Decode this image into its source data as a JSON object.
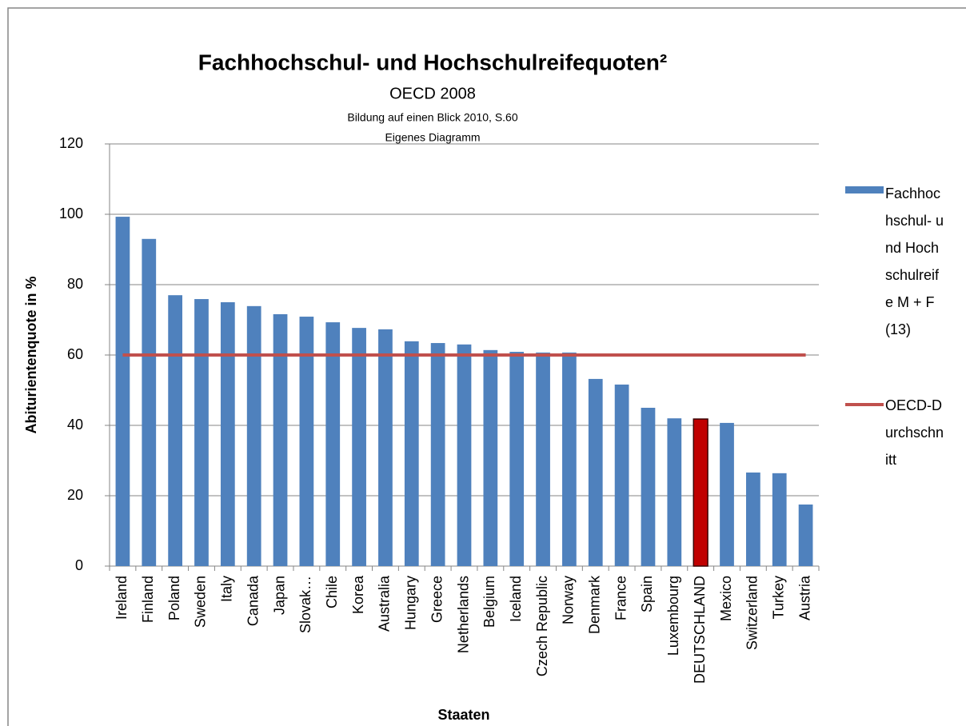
{
  "chart_data": {
    "type": "bar",
    "title": "Fachhochschul- und Hochschulreifequoten²",
    "subtitle": "OECD 2008",
    "annotations": [
      "Bildung auf einen Blick 2010, S.60",
      "Eigenes Diagramm"
    ],
    "xlabel": "Staaten",
    "ylabel": "Abiturientenquote in %",
    "categories": [
      "Ireland",
      "Finland",
      "Poland",
      "Sweden",
      "Italy",
      "Canada",
      "Japan",
      "Slovak…",
      "Chile",
      "Korea",
      "Australia",
      "Hungary",
      "Greece",
      "Netherlands",
      "Belgium",
      "Iceland",
      "Czech Republic",
      "Norway",
      "Denmark",
      "France",
      "Spain",
      "Luxembourg",
      "DEUTSCHLAND",
      "Mexico",
      "Switzerland",
      "Turkey",
      "Austria"
    ],
    "series": [
      {
        "name": "Fachhochschul- und Hochschulreife M + F (13)",
        "type": "bar",
        "color": "#4f81bd",
        "colors": [
          "#4f81bd",
          "#4f81bd",
          "#4f81bd",
          "#4f81bd",
          "#4f81bd",
          "#4f81bd",
          "#4f81bd",
          "#4f81bd",
          "#4f81bd",
          "#4f81bd",
          "#4f81bd",
          "#4f81bd",
          "#4f81bd",
          "#4f81bd",
          "#4f81bd",
          "#4f81bd",
          "#4f81bd",
          "#4f81bd",
          "#4f81bd",
          "#4f81bd",
          "#4f81bd",
          "#4f81bd",
          "#c00000",
          "#4f81bd",
          "#4f81bd",
          "#4f81bd",
          "#4f81bd"
        ],
        "values": [
          99.3,
          93,
          77,
          75.9,
          75,
          73.9,
          71.6,
          70.9,
          69.3,
          67.7,
          67.3,
          63.9,
          63.4,
          63,
          61.4,
          60.9,
          60.7,
          60.7,
          53.2,
          51.6,
          45,
          42,
          41.8,
          40.7,
          26.6,
          26.4,
          17.5
        ]
      },
      {
        "name": "OECD-Durchschnitt",
        "type": "line",
        "color": "#c0504d",
        "values": [
          60,
          60,
          60,
          60,
          60,
          60,
          60,
          60,
          60,
          60,
          60,
          60,
          60,
          60,
          60,
          60,
          60,
          60,
          60,
          60,
          60,
          60,
          60,
          60,
          60,
          60,
          60
        ]
      }
    ],
    "ylim": [
      0,
      120
    ],
    "yticks": [
      0,
      20,
      40,
      60,
      80,
      100,
      120
    ],
    "grid": true,
    "legend": "right"
  }
}
